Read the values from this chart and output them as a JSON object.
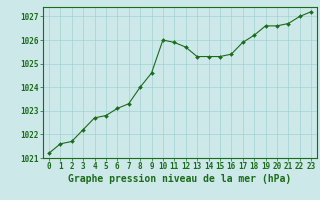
{
  "x": [
    0,
    1,
    2,
    3,
    4,
    5,
    6,
    7,
    8,
    9,
    10,
    11,
    12,
    13,
    14,
    15,
    16,
    17,
    18,
    19,
    20,
    21,
    22,
    23
  ],
  "y": [
    1021.2,
    1021.6,
    1021.7,
    1022.2,
    1022.7,
    1022.8,
    1023.1,
    1023.3,
    1024.0,
    1024.6,
    1026.0,
    1025.9,
    1025.7,
    1025.3,
    1025.3,
    1025.3,
    1025.4,
    1025.9,
    1026.2,
    1026.6,
    1026.6,
    1026.7,
    1027.0,
    1027.2
  ],
  "ylim": [
    1021,
    1027.4
  ],
  "yticks": [
    1021,
    1022,
    1023,
    1024,
    1025,
    1026,
    1027
  ],
  "xlim": [
    -0.5,
    23.5
  ],
  "xticks": [
    0,
    1,
    2,
    3,
    4,
    5,
    6,
    7,
    8,
    9,
    10,
    11,
    12,
    13,
    14,
    15,
    16,
    17,
    18,
    19,
    20,
    21,
    22,
    23
  ],
  "xlabel": "Graphe pression niveau de la mer (hPa)",
  "line_color": "#1a6b1a",
  "marker": "D",
  "marker_size": 2.0,
  "bg_color": "#cce8e8",
  "grid_color": "#99cccc",
  "tick_color": "#1a6b1a",
  "label_color": "#1a6b1a",
  "tick_fontsize": 5.5,
  "xlabel_fontsize": 7.0
}
